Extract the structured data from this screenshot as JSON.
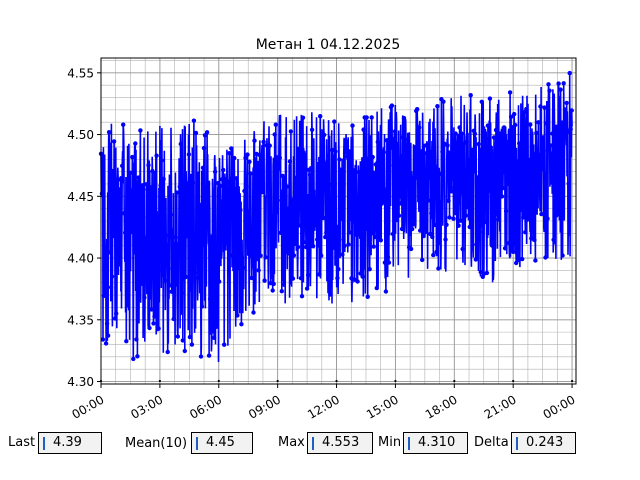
{
  "chart_data": {
    "type": "line",
    "title": "Метан 1 04.12.2025",
    "xlabel": "",
    "ylabel": "",
    "x_range_hours": [
      0,
      24.2
    ],
    "ylim": [
      4.298,
      4.562
    ],
    "yticks": [
      4.3,
      4.35,
      4.4,
      4.45,
      4.5,
      4.55
    ],
    "ytick_labels": [
      "4.30",
      "4.35",
      "4.40",
      "4.45",
      "4.50",
      "4.55"
    ],
    "xticks_hours": [
      0,
      3,
      6,
      9,
      12,
      15,
      18,
      21,
      24
    ],
    "xtick_labels": [
      "00:00",
      "03:00",
      "06:00",
      "09:00",
      "12:00",
      "15:00",
      "18:00",
      "21:00",
      "00:00"
    ],
    "grid": true,
    "line_color": "#0000ff",
    "marker": "circle",
    "series": [
      {
        "envelope_hours": [
          0,
          1,
          2,
          3,
          4,
          5,
          6,
          7,
          8,
          9,
          10,
          11,
          12,
          13,
          14,
          15,
          16,
          17,
          18,
          19,
          20,
          21,
          22,
          23,
          24
        ],
        "mean": [
          4.415,
          4.415,
          4.418,
          4.42,
          4.42,
          4.425,
          4.425,
          4.43,
          4.44,
          4.445,
          4.445,
          4.45,
          4.45,
          4.45,
          4.455,
          4.46,
          4.465,
          4.465,
          4.465,
          4.465,
          4.465,
          4.47,
          4.47,
          4.47,
          4.47
        ],
        "max": [
          4.5,
          4.517,
          4.508,
          4.51,
          4.505,
          4.515,
          4.49,
          4.49,
          4.51,
          4.52,
          4.515,
          4.52,
          4.51,
          4.51,
          4.52,
          4.525,
          4.52,
          4.53,
          4.53,
          4.535,
          4.53,
          4.535,
          4.535,
          4.545,
          4.553
        ],
        "min": [
          4.325,
          4.31,
          4.32,
          4.315,
          4.325,
          4.32,
          4.315,
          4.33,
          4.36,
          4.355,
          4.37,
          4.365,
          4.36,
          4.365,
          4.37,
          4.365,
          4.39,
          4.385,
          4.39,
          4.385,
          4.38,
          4.39,
          4.39,
          4.4,
          4.395
        ]
      }
    ]
  },
  "stats": [
    {
      "label": "Last",
      "value": "4.39"
    },
    {
      "label": "Mean(10)",
      "value": "4.45"
    },
    {
      "label": "Max",
      "value": "4.553"
    },
    {
      "label": "Min",
      "value": "4.310"
    },
    {
      "label": "Delta",
      "value": "0.243"
    }
  ]
}
